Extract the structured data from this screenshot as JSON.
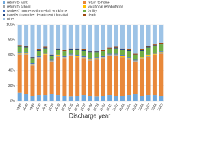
{
  "chart_data": {
    "type": "bar",
    "stacked": true,
    "x_label": "Discharge year",
    "categories": [
      "1997",
      "1998",
      "1999",
      "2000",
      "2001",
      "2002",
      "2003",
      "2004",
      "2005",
      "2006",
      "2007",
      "2008",
      "2009",
      "2010",
      "2011",
      "2012",
      "2013",
      "2014",
      "2015",
      "2016",
      "2017",
      "2018",
      "2019"
    ],
    "series": [
      {
        "name": "return to work",
        "color": "#6fa8dc",
        "values": [
          11,
          9,
          7,
          8,
          8,
          9,
          8,
          7,
          6,
          7,
          8,
          7,
          6,
          7,
          8,
          7,
          7,
          8,
          9,
          7,
          8,
          8,
          7
        ]
      },
      {
        "name": "return to home",
        "color": "#e8883a",
        "values": [
          50,
          52,
          40,
          48,
          52,
          42,
          50,
          49,
          53,
          50,
          48,
          46,
          48,
          49,
          51,
          52,
          50,
          46,
          42,
          48,
          50,
          52,
          55
        ]
      },
      {
        "name": "return to school",
        "color": "#a5a5a5",
        "values": [
          1,
          1,
          1,
          1,
          1,
          1,
          1,
          1,
          1,
          1,
          1,
          1,
          1,
          1,
          1,
          1,
          1,
          1,
          1,
          1,
          1,
          1,
          1
        ]
      },
      {
        "name": "vocational rehabilitation",
        "color": "#ffc000",
        "values": [
          1,
          1,
          1,
          1,
          1,
          1,
          1,
          1,
          1,
          1,
          1,
          1,
          1,
          1,
          1,
          1,
          1,
          1,
          1,
          1,
          1,
          1,
          1
        ]
      },
      {
        "name": "workers' compensation rehab workforce",
        "color": "#4472c4",
        "values": [
          1,
          1,
          1,
          1,
          1,
          1,
          1,
          1,
          1,
          1,
          1,
          1,
          1,
          1,
          1,
          1,
          1,
          1,
          1,
          1,
          1,
          1,
          1
        ]
      },
      {
        "name": "facility",
        "color": "#70ad47",
        "values": [
          7,
          6,
          6,
          7,
          6,
          5,
          6,
          6,
          5,
          7,
          7,
          8,
          7,
          6,
          6,
          7,
          7,
          9,
          6,
          8,
          9,
          9,
          9
        ]
      },
      {
        "name": "transfer to another department / hospital",
        "color": "#264478",
        "values": [
          1,
          1,
          1,
          1,
          1,
          1,
          1,
          1,
          1,
          1,
          1,
          1,
          1,
          1,
          1,
          1,
          1,
          1,
          1,
          1,
          1,
          1,
          1
        ]
      },
      {
        "name": "death",
        "color": "#9e480e",
        "values": [
          1,
          1,
          1,
          1,
          1,
          1,
          1,
          1,
          1,
          1,
          1,
          1,
          1,
          1,
          1,
          1,
          1,
          1,
          1,
          1,
          1,
          1,
          1
        ]
      },
      {
        "name": "other",
        "color": "#9dc3e6",
        "values": [
          27,
          28,
          42,
          32,
          29,
          39,
          31,
          33,
          31,
          31,
          32,
          34,
          34,
          33,
          30,
          29,
          31,
          32,
          38,
          32,
          28,
          26,
          24
        ]
      }
    ],
    "ylim": [
      0,
      100
    ],
    "yticks": [
      {
        "value": 0,
        "label": "0%"
      },
      {
        "value": 20,
        "label": "20%"
      },
      {
        "value": 40,
        "label": "40%"
      },
      {
        "value": 60,
        "label": "60%"
      },
      {
        "value": 80,
        "label": "80%"
      },
      {
        "value": 100,
        "label": "100%"
      }
    ],
    "grid": true
  }
}
